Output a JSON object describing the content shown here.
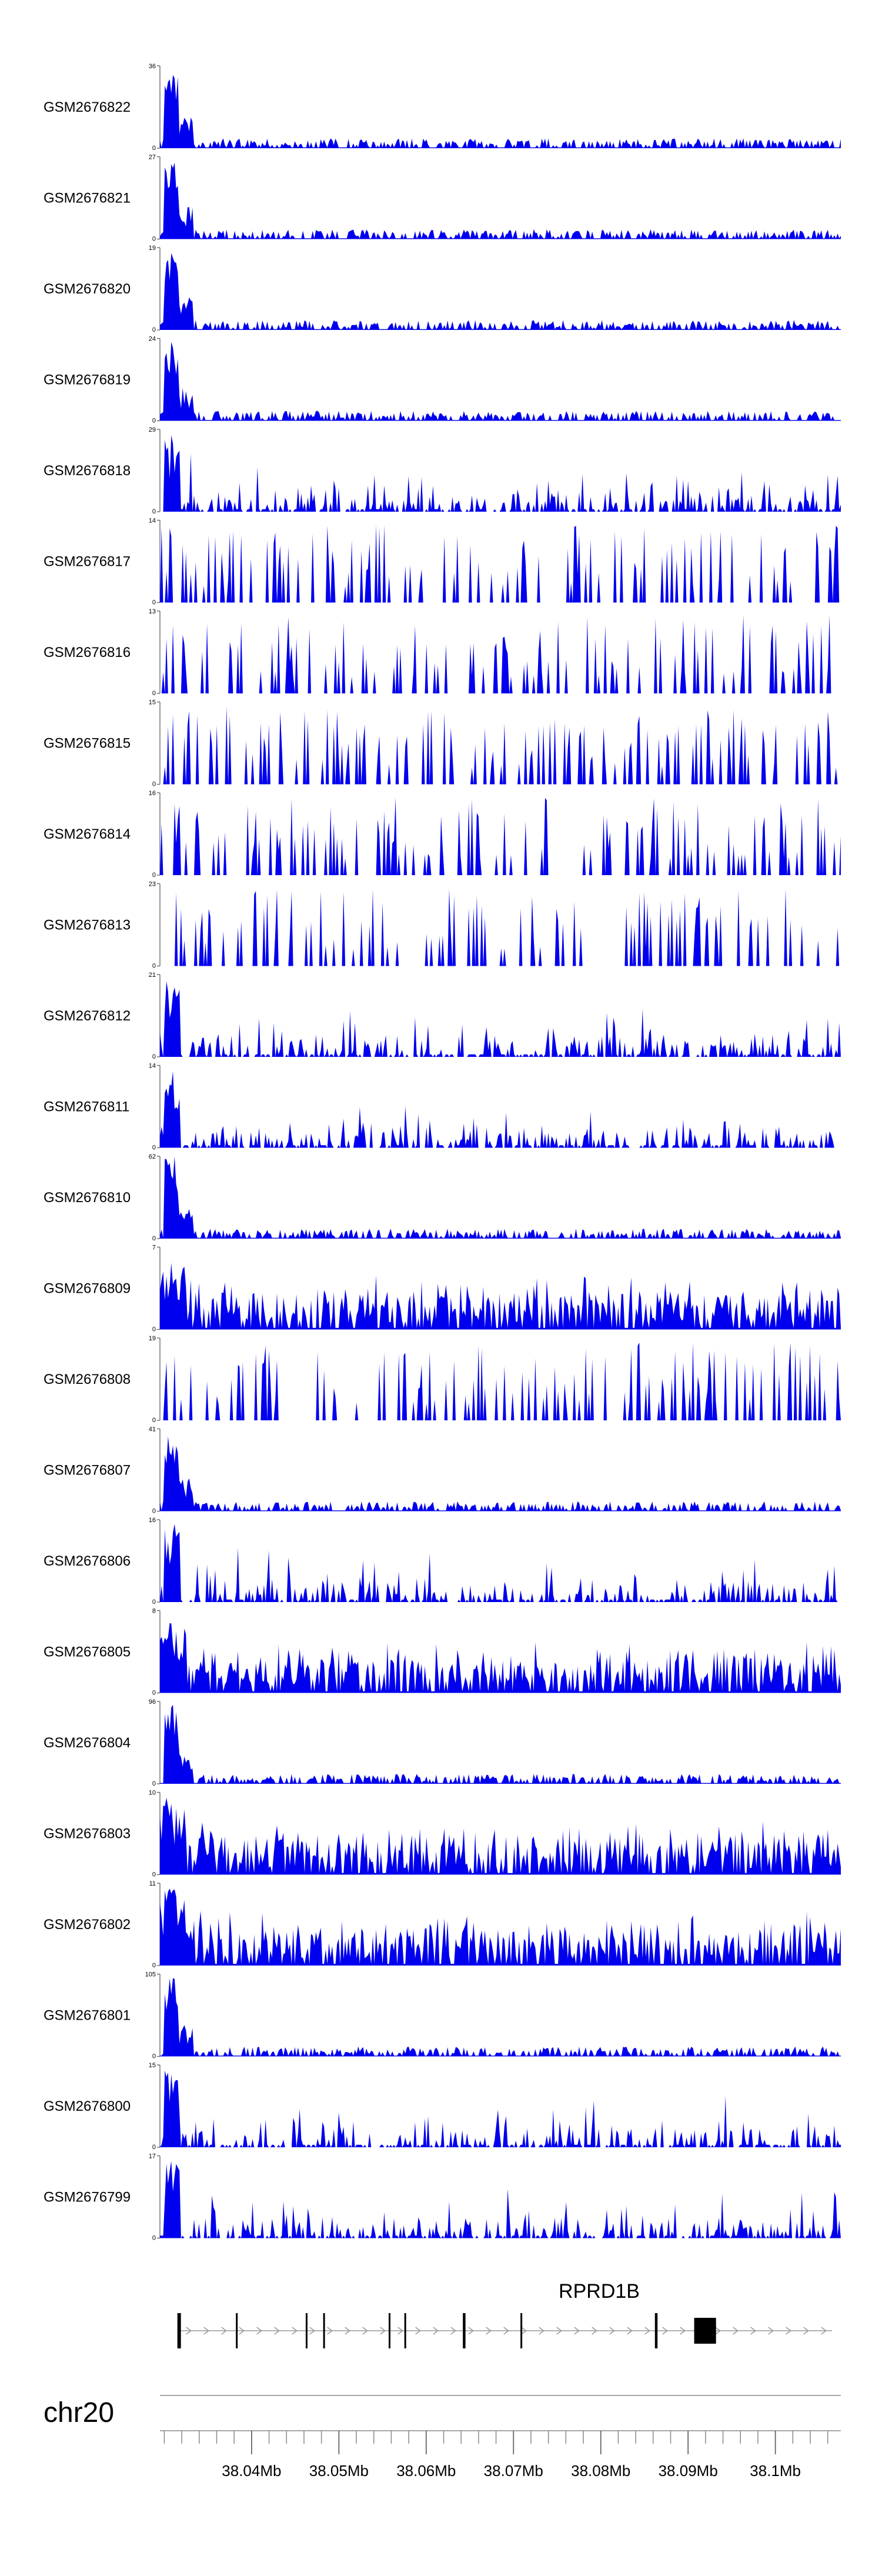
{
  "colors": {
    "coverage": "#0000ee",
    "axis": "#555555",
    "gene": "#000000",
    "intron": "#999999"
  },
  "chart_data": {
    "type": "area",
    "title": "",
    "x_range_mb": [
      38.0295,
      38.1075
    ],
    "tracks": [
      {
        "name": "GSM2676822",
        "max": "36",
        "profile": "early"
      },
      {
        "name": "GSM2676821",
        "max": "27",
        "profile": "early"
      },
      {
        "name": "GSM2676820",
        "max": "19",
        "profile": "early"
      },
      {
        "name": "GSM2676819",
        "max": "24",
        "profile": "early"
      },
      {
        "name": "GSM2676818",
        "max": "29",
        "profile": "mixed"
      },
      {
        "name": "GSM2676817",
        "max": "14",
        "profile": "sparse"
      },
      {
        "name": "GSM2676816",
        "max": "13",
        "profile": "sparse"
      },
      {
        "name": "GSM2676815",
        "max": "15",
        "profile": "sparse"
      },
      {
        "name": "GSM2676814",
        "max": "16",
        "profile": "sparse"
      },
      {
        "name": "GSM2676813",
        "max": "23",
        "profile": "sparse"
      },
      {
        "name": "GSM2676812",
        "max": "21",
        "profile": "mixed"
      },
      {
        "name": "GSM2676811",
        "max": "14",
        "profile": "mixed"
      },
      {
        "name": "GSM2676810",
        "max": "62",
        "profile": "early"
      },
      {
        "name": "GSM2676809",
        "max": "7",
        "profile": "dense"
      },
      {
        "name": "GSM2676808",
        "max": "19",
        "profile": "sparse"
      },
      {
        "name": "GSM2676807",
        "max": "41",
        "profile": "early"
      },
      {
        "name": "GSM2676806",
        "max": "16",
        "profile": "mixed"
      },
      {
        "name": "GSM2676805",
        "max": "8",
        "profile": "dense"
      },
      {
        "name": "GSM2676804",
        "max": "96",
        "profile": "early"
      },
      {
        "name": "GSM2676803",
        "max": "10",
        "profile": "dense"
      },
      {
        "name": "GSM2676802",
        "max": "11",
        "profile": "dense"
      },
      {
        "name": "GSM2676801",
        "max": "105",
        "profile": "early"
      },
      {
        "name": "GSM2676800",
        "max": "15",
        "profile": "mixed"
      },
      {
        "name": "GSM2676799",
        "max": "17",
        "profile": "mixed"
      }
    ],
    "y_min_label": "0",
    "gene": {
      "name": "RPRD1B",
      "start_mb": 38.0315,
      "end_mb": 38.1065,
      "exons": [
        {
          "start_mb": 38.0315,
          "end_mb": 38.0319
        },
        {
          "start_mb": 38.0382,
          "end_mb": 38.0384
        },
        {
          "start_mb": 38.0462,
          "end_mb": 38.0464
        },
        {
          "start_mb": 38.0482,
          "end_mb": 38.0484
        },
        {
          "start_mb": 38.0557,
          "end_mb": 38.0559
        },
        {
          "start_mb": 38.0575,
          "end_mb": 38.0577
        },
        {
          "start_mb": 38.0642,
          "end_mb": 38.0645
        },
        {
          "start_mb": 38.0708,
          "end_mb": 38.071
        },
        {
          "start_mb": 38.0862,
          "end_mb": 38.0865
        },
        {
          "start_mb": 38.0907,
          "end_mb": 38.0932
        }
      ]
    },
    "chromosome": "chr20",
    "x_ticks": [
      "38.04Mb",
      "38.05Mb",
      "38.06Mb",
      "38.07Mb",
      "38.08Mb",
      "38.09Mb",
      "38.1Mb"
    ],
    "x_tick_values": [
      38.04,
      38.05,
      38.06,
      38.07,
      38.08,
      38.09,
      38.1
    ]
  }
}
